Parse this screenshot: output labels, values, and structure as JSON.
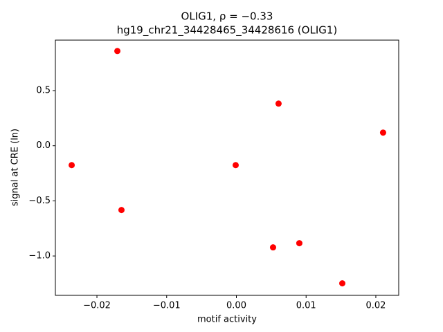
{
  "chart_data": {
    "type": "scatter",
    "title": "OLIG1, ρ = −0.33",
    "subtitle": "hg19_chr21_34428465_34428616 (OLIG1)",
    "x_label": "motif activity",
    "y_label": "signal at CRE (ln)",
    "color": "#ff0000",
    "x": [
      -0.01707,
      0.00605,
      0.02104,
      -0.02362,
      -0.0001,
      -0.01648,
      0.00526,
      0.00903,
      0.01519
    ],
    "values": [
      0.859,
      0.382,
      0.119,
      -0.176,
      -0.176,
      -0.583,
      -0.922,
      -0.884,
      -1.248
    ],
    "xlim": [
      -0.02596,
      0.02328
    ],
    "ylim": [
      -1.357,
      0.958
    ],
    "xticks": [
      {
        "value": -0.02,
        "label": "−0.02"
      },
      {
        "value": -0.01,
        "label": "−0.01"
      },
      {
        "value": 0,
        "label": "0.00"
      },
      0.01,
      0.02
    ],
    "yticks": [
      {
        "value": -1.0,
        "label": "−1.0"
      },
      {
        "value": -0.5,
        "label": "−0.5"
      },
      {
        "value": 0,
        "label": "0.0"
      },
      0.5
    ],
    "grid": false
  }
}
